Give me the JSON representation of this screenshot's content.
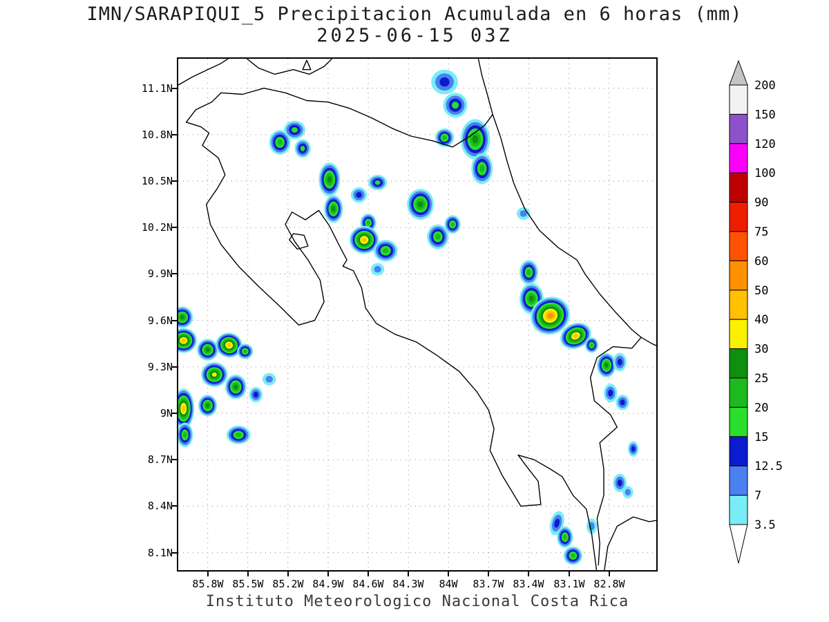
{
  "title": "IMN/SARAPIQUI_5 Precipitacion Acumulada en 6 horas (mm)",
  "subtitle": "2025-06-15 03Z",
  "footer": "Instituto Meteorologico Nacional Costa Rica",
  "chart_data": {
    "type": "heatmap",
    "variable": "Precipitacion Acumulada en 6 horas (mm)",
    "valid_time": "2025-06-15 03Z",
    "region": "Costa Rica",
    "grid": true,
    "lon_range": [
      86.02,
      82.45
    ],
    "lat_range": [
      7.99,
      11.29
    ],
    "x_axis": {
      "ticks": [
        {
          "v": 85.8,
          "label": "85.8W"
        },
        {
          "v": 85.5,
          "label": "85.5W"
        },
        {
          "v": 85.2,
          "label": "85.2W"
        },
        {
          "v": 84.9,
          "label": "84.9W"
        },
        {
          "v": 84.6,
          "label": "84.6W"
        },
        {
          "v": 84.3,
          "label": "84.3W"
        },
        {
          "v": 84.0,
          "label": "84W"
        },
        {
          "v": 83.7,
          "label": "83.7W"
        },
        {
          "v": 83.4,
          "label": "83.4W"
        },
        {
          "v": 83.1,
          "label": "83.1W"
        },
        {
          "v": 82.8,
          "label": "82.8W"
        }
      ]
    },
    "y_axis": {
      "ticks": [
        {
          "v": 11.1,
          "label": "11.1N"
        },
        {
          "v": 10.8,
          "label": "10.8N"
        },
        {
          "v": 10.5,
          "label": "10.5N"
        },
        {
          "v": 10.2,
          "label": "10.2N"
        },
        {
          "v": 9.9,
          "label": "9.9N"
        },
        {
          "v": 9.6,
          "label": "9.6N"
        },
        {
          "v": 9.3,
          "label": "9.3N"
        },
        {
          "v": 9.0,
          "label": "9N"
        },
        {
          "v": 8.7,
          "label": "8.7N"
        },
        {
          "v": 8.4,
          "label": "8.4N"
        },
        {
          "v": 8.1,
          "label": "8.1N"
        }
      ]
    },
    "colorbar": {
      "boundaries": [
        3.5,
        7,
        12.5,
        15,
        20,
        25,
        30,
        40,
        50,
        60,
        75,
        90,
        100,
        120,
        150,
        200
      ],
      "labels": [
        "3.5",
        "7",
        "12.5",
        "15",
        "20",
        "25",
        "30",
        "40",
        "50",
        "60",
        "75",
        "90",
        "100",
        "120",
        "150",
        "200"
      ],
      "band_colors": [
        "#79EDF5",
        "#4B80F0",
        "#0A1CCD",
        "#2ADF2A",
        "#1CBA1C",
        "#0E8F0E",
        "#FBF000",
        "#FFC100",
        "#FF9100",
        "#FF5200",
        "#EF1E00",
        "#BE0000",
        "#FA00FA",
        "#8D52C9",
        "#F2F2F2"
      ],
      "arrow_top_color": "#C5C5C5",
      "arrow_bottom_color": "#FFFFFF"
    },
    "cells": [
      {
        "lon": 84.03,
        "lat": 11.14,
        "v": 12.5,
        "rx": 0.1,
        "ry": 0.08
      },
      {
        "lon": 83.95,
        "lat": 10.99,
        "v": 15,
        "rx": 0.09,
        "ry": 0.08
      },
      {
        "lon": 84.03,
        "lat": 10.78,
        "v": 20,
        "rx": 0.07,
        "ry": 0.06
      },
      {
        "lon": 83.8,
        "lat": 10.77,
        "v": 25,
        "rx": 0.11,
        "ry": 0.13
      },
      {
        "lon": 83.75,
        "lat": 10.58,
        "v": 20,
        "rx": 0.08,
        "ry": 0.1
      },
      {
        "lon": 85.26,
        "lat": 10.75,
        "v": 20,
        "rx": 0.08,
        "ry": 0.08
      },
      {
        "lon": 85.15,
        "lat": 10.83,
        "v": 15,
        "rx": 0.08,
        "ry": 0.06
      },
      {
        "lon": 85.09,
        "lat": 10.71,
        "v": 15,
        "rx": 0.06,
        "ry": 0.06
      },
      {
        "lon": 84.89,
        "lat": 10.51,
        "v": 25,
        "rx": 0.08,
        "ry": 0.11
      },
      {
        "lon": 84.86,
        "lat": 10.32,
        "v": 25,
        "rx": 0.07,
        "ry": 0.09
      },
      {
        "lon": 84.67,
        "lat": 10.41,
        "v": 12.5,
        "rx": 0.06,
        "ry": 0.05
      },
      {
        "lon": 84.53,
        "lat": 10.49,
        "v": 15,
        "rx": 0.07,
        "ry": 0.05
      },
      {
        "lon": 84.6,
        "lat": 10.23,
        "v": 20,
        "rx": 0.06,
        "ry": 0.06
      },
      {
        "lon": 84.63,
        "lat": 10.12,
        "v": 40,
        "rx": 0.11,
        "ry": 0.09
      },
      {
        "lon": 84.47,
        "lat": 10.05,
        "v": 20,
        "rx": 0.09,
        "ry": 0.07
      },
      {
        "lon": 84.21,
        "lat": 10.35,
        "v": 25,
        "rx": 0.1,
        "ry": 0.1
      },
      {
        "lon": 84.08,
        "lat": 10.14,
        "v": 20,
        "rx": 0.08,
        "ry": 0.08
      },
      {
        "lon": 83.97,
        "lat": 10.22,
        "v": 20,
        "rx": 0.06,
        "ry": 0.06
      },
      {
        "lon": 84.53,
        "lat": 9.93,
        "v": 7,
        "rx": 0.05,
        "ry": 0.04
      },
      {
        "lon": 83.44,
        "lat": 10.29,
        "v": 7,
        "rx": 0.05,
        "ry": 0.04
      },
      {
        "lon": 83.4,
        "lat": 9.91,
        "v": 20,
        "rx": 0.07,
        "ry": 0.08
      },
      {
        "lon": 83.38,
        "lat": 9.74,
        "v": 25,
        "rx": 0.09,
        "ry": 0.1
      },
      {
        "lon": 83.24,
        "lat": 9.63,
        "v": 50,
        "rx": 0.15,
        "ry": 0.12,
        "rot": -30
      },
      {
        "lon": 83.05,
        "lat": 9.5,
        "v": 40,
        "rx": 0.12,
        "ry": 0.08,
        "rot": -25
      },
      {
        "lon": 82.93,
        "lat": 9.44,
        "v": 20,
        "rx": 0.05,
        "ry": 0.05
      },
      {
        "lon": 82.82,
        "lat": 9.31,
        "v": 25,
        "rx": 0.07,
        "ry": 0.08
      },
      {
        "lon": 82.72,
        "lat": 9.33,
        "v": 12.5,
        "rx": 0.05,
        "ry": 0.06
      },
      {
        "lon": 82.79,
        "lat": 9.13,
        "v": 12.5,
        "rx": 0.05,
        "ry": 0.06
      },
      {
        "lon": 82.7,
        "lat": 9.07,
        "v": 12.5,
        "rx": 0.05,
        "ry": 0.05
      },
      {
        "lon": 85.99,
        "lat": 9.62,
        "v": 25,
        "rx": 0.08,
        "ry": 0.07
      },
      {
        "lon": 85.98,
        "lat": 9.47,
        "v": 40,
        "rx": 0.1,
        "ry": 0.08
      },
      {
        "lon": 85.8,
        "lat": 9.41,
        "v": 25,
        "rx": 0.08,
        "ry": 0.07
      },
      {
        "lon": 85.64,
        "lat": 9.44,
        "v": 40,
        "rx": 0.1,
        "ry": 0.08,
        "rot": 15
      },
      {
        "lon": 85.52,
        "lat": 9.4,
        "v": 20,
        "rx": 0.06,
        "ry": 0.05
      },
      {
        "lon": 85.75,
        "lat": 9.25,
        "v": 30,
        "rx": 0.1,
        "ry": 0.08
      },
      {
        "lon": 85.59,
        "lat": 9.17,
        "v": 25,
        "rx": 0.08,
        "ry": 0.08
      },
      {
        "lon": 85.44,
        "lat": 9.12,
        "v": 12.5,
        "rx": 0.05,
        "ry": 0.05
      },
      {
        "lon": 85.98,
        "lat": 9.03,
        "v": 40,
        "rx": 0.08,
        "ry": 0.13
      },
      {
        "lon": 85.8,
        "lat": 9.05,
        "v": 25,
        "rx": 0.07,
        "ry": 0.07
      },
      {
        "lon": 85.97,
        "lat": 8.86,
        "v": 20,
        "rx": 0.06,
        "ry": 0.08
      },
      {
        "lon": 85.57,
        "lat": 8.86,
        "v": 20,
        "rx": 0.09,
        "ry": 0.06
      },
      {
        "lon": 85.34,
        "lat": 9.22,
        "v": 7,
        "rx": 0.05,
        "ry": 0.04
      },
      {
        "lon": 83.19,
        "lat": 8.29,
        "v": 12.5,
        "rx": 0.05,
        "ry": 0.08,
        "rot": 15
      },
      {
        "lon": 83.13,
        "lat": 8.2,
        "v": 20,
        "rx": 0.06,
        "ry": 0.07
      },
      {
        "lon": 83.07,
        "lat": 8.08,
        "v": 20,
        "rx": 0.07,
        "ry": 0.06
      },
      {
        "lon": 82.93,
        "lat": 8.27,
        "v": 7,
        "rx": 0.04,
        "ry": 0.05
      },
      {
        "lon": 82.72,
        "lat": 8.55,
        "v": 12.5,
        "rx": 0.05,
        "ry": 0.06
      },
      {
        "lon": 82.66,
        "lat": 8.49,
        "v": 7,
        "rx": 0.04,
        "ry": 0.04
      },
      {
        "lon": 82.62,
        "lat": 8.77,
        "v": 12.5,
        "rx": 0.04,
        "ry": 0.05
      }
    ],
    "coastlines": [
      [
        [
          86.02,
          11.12
        ],
        [
          85.92,
          11.17
        ],
        [
          85.8,
          11.22
        ],
        [
          85.7,
          11.26
        ],
        [
          85.63,
          11.3
        ]
      ],
      [
        [
          85.52,
          11.3
        ],
        [
          85.42,
          11.23
        ],
        [
          85.3,
          11.19
        ],
        [
          85.16,
          11.22
        ],
        [
          85.04,
          11.19
        ],
        [
          84.93,
          11.24
        ],
        [
          84.86,
          11.3
        ]
      ],
      [
        [
          85.09,
          11.22
        ],
        [
          85.03,
          11.22
        ],
        [
          85.06,
          11.28
        ],
        [
          85.09,
          11.22
        ]
      ],
      [
        [
          85.7,
          11.07
        ],
        [
          85.77,
          11.01
        ],
        [
          85.89,
          10.96
        ],
        [
          85.96,
          10.88
        ],
        [
          85.85,
          10.85
        ],
        [
          85.79,
          10.81
        ],
        [
          85.84,
          10.73
        ],
        [
          85.72,
          10.65
        ],
        [
          85.67,
          10.54
        ],
        [
          85.73,
          10.45
        ],
        [
          85.81,
          10.35
        ],
        [
          85.78,
          10.22
        ],
        [
          85.7,
          10.09
        ],
        [
          85.57,
          9.95
        ],
        [
          85.42,
          9.82
        ],
        [
          85.26,
          9.69
        ],
        [
          85.12,
          9.57
        ],
        [
          85.0,
          9.6
        ],
        [
          84.93,
          9.72
        ],
        [
          84.96,
          9.86
        ],
        [
          85.05,
          9.99
        ],
        [
          85.15,
          10.11
        ],
        [
          85.22,
          10.22
        ],
        [
          85.17,
          10.3
        ],
        [
          85.07,
          10.25
        ],
        [
          84.97,
          10.31
        ],
        [
          84.89,
          10.21
        ],
        [
          84.82,
          10.09
        ],
        [
          84.76,
          9.99
        ],
        [
          84.79,
          9.95
        ],
        [
          84.71,
          9.92
        ],
        [
          84.65,
          9.81
        ],
        [
          84.62,
          9.68
        ],
        [
          84.54,
          9.58
        ],
        [
          84.4,
          9.51
        ],
        [
          84.24,
          9.46
        ],
        [
          84.08,
          9.37
        ],
        [
          83.92,
          9.27
        ],
        [
          83.79,
          9.14
        ],
        [
          83.7,
          9.02
        ],
        [
          83.66,
          8.9
        ],
        [
          83.69,
          8.76
        ],
        [
          83.6,
          8.6
        ],
        [
          83.46,
          8.4
        ],
        [
          83.31,
          8.41
        ],
        [
          83.33,
          8.56
        ],
        [
          83.42,
          8.66
        ],
        [
          83.48,
          8.73
        ],
        [
          83.36,
          8.7
        ],
        [
          83.24,
          8.64
        ],
        [
          83.15,
          8.59
        ],
        [
          83.07,
          8.47
        ],
        [
          82.97,
          8.38
        ],
        [
          82.93,
          8.22
        ],
        [
          82.89,
          7.96
        ],
        [
          82.84,
          7.96
        ],
        [
          82.81,
          8.14
        ],
        [
          82.74,
          8.27
        ],
        [
          82.62,
          8.33
        ],
        [
          82.5,
          8.3
        ],
        [
          82.43,
          8.31
        ]
      ],
      [
        [
          83.78,
          11.3
        ],
        [
          83.75,
          11.18
        ],
        [
          83.71,
          11.06
        ],
        [
          83.67,
          10.93
        ],
        [
          83.61,
          10.78
        ],
        [
          83.56,
          10.62
        ],
        [
          83.51,
          10.48
        ],
        [
          83.43,
          10.32
        ],
        [
          83.32,
          10.18
        ],
        [
          83.18,
          10.07
        ],
        [
          83.04,
          9.99
        ],
        [
          82.98,
          9.9
        ],
        [
          82.87,
          9.77
        ],
        [
          82.76,
          9.66
        ],
        [
          82.63,
          9.54
        ],
        [
          82.56,
          9.49
        ],
        [
          82.48,
          9.45
        ],
        [
          82.43,
          9.43
        ]
      ],
      [
        [
          85.7,
          11.07
        ],
        [
          85.54,
          11.06
        ],
        [
          85.38,
          11.1
        ],
        [
          85.22,
          11.07
        ],
        [
          85.06,
          11.02
        ],
        [
          84.9,
          11.01
        ],
        [
          84.74,
          10.97
        ],
        [
          84.58,
          10.91
        ],
        [
          84.42,
          10.84
        ],
        [
          84.28,
          10.79
        ],
        [
          84.12,
          10.76
        ],
        [
          83.97,
          10.72
        ],
        [
          83.84,
          10.79
        ],
        [
          83.73,
          10.86
        ],
        [
          83.67,
          10.93
        ]
      ],
      [
        [
          82.56,
          9.49
        ],
        [
          82.63,
          9.42
        ],
        [
          82.77,
          9.43
        ],
        [
          82.89,
          9.36
        ],
        [
          82.94,
          9.23
        ],
        [
          82.91,
          9.08
        ],
        [
          82.79,
          8.99
        ],
        [
          82.74,
          8.91
        ],
        [
          82.87,
          8.81
        ],
        [
          82.84,
          8.64
        ],
        [
          82.84,
          8.47
        ],
        [
          82.89,
          8.32
        ],
        [
          82.87,
          8.16
        ],
        [
          82.88,
          8.02
        ]
      ],
      [
        [
          85.19,
          10.12
        ],
        [
          85.13,
          10.06
        ],
        [
          85.05,
          10.08
        ],
        [
          85.08,
          10.15
        ],
        [
          85.16,
          10.16
        ],
        [
          85.19,
          10.12
        ]
      ]
    ]
  }
}
